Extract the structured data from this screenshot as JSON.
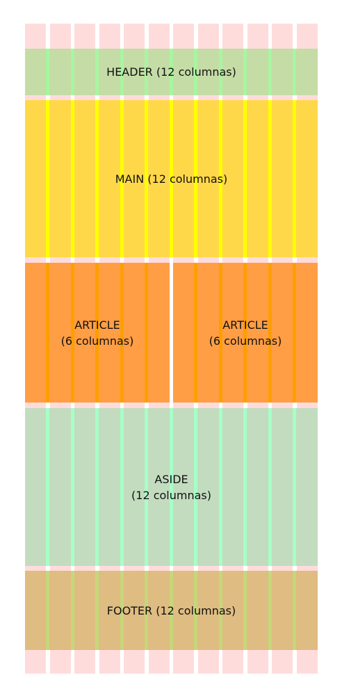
{
  "grid": {
    "columns": 12,
    "column_color": "#ffdcdc",
    "gutter_color": "#ffffff"
  },
  "blocks": [
    {
      "id": "header",
      "text": "HEADER (12 columnas)",
      "bg": "#c5dca6",
      "stripe": "#a8f5a0"
    },
    {
      "id": "main",
      "text": "MAIN (12 columnas)",
      "bg": "#ffd84a",
      "stripe": "#ffff00"
    },
    {
      "id": "aside",
      "text": "ASIDE\n(12 columnas)",
      "bg": "#c3dcbf",
      "stripe": "#a6ffc6"
    },
    {
      "id": "footer",
      "text": "FOOTER (12 columnas)",
      "bg": "#dfbc82",
      "stripe": "#c6d77a"
    }
  ],
  "articles": [
    {
      "text": "ARTICLE\n(6 columnas)",
      "bg": "#ff9e45",
      "stripe": "#ff9e00"
    },
    {
      "text": "ARTICLE\n(6 columnas)",
      "bg": "#ff9e45",
      "stripe": "#ff9e00"
    }
  ]
}
